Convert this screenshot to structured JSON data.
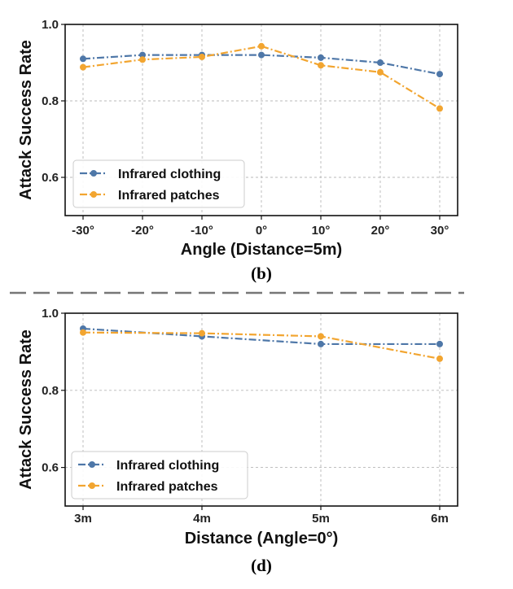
{
  "chart_data": [
    {
      "type": "line",
      "caption": "(b)",
      "xlabel": "Angle (Distance=5m)",
      "ylabel": "Attack Success Rate",
      "categories": [
        "-30°",
        "-20°",
        "-10°",
        "0°",
        "10°",
        "20°",
        "30°"
      ],
      "ylim": [
        0.5,
        1.0
      ],
      "yticks": [
        "0.6",
        "0.8",
        "1.0"
      ],
      "grid": true,
      "legend_position": "lower-left",
      "series": [
        {
          "name": "Infrared clothing",
          "color": "#4e77a8",
          "values": [
            0.91,
            0.92,
            0.92,
            0.92,
            0.913,
            0.9,
            0.87
          ]
        },
        {
          "name": "Infrared patches",
          "color": "#f2a530",
          "values": [
            0.888,
            0.908,
            0.915,
            0.943,
            0.893,
            0.875,
            0.78
          ]
        }
      ]
    },
    {
      "type": "line",
      "caption": "(d)",
      "xlabel": "Distance (Angle=0°)",
      "ylabel": "Attack Success Rate",
      "categories": [
        "3m",
        "4m",
        "5m",
        "6m"
      ],
      "ylim": [
        0.5,
        1.0
      ],
      "yticks": [
        "0.6",
        "0.8",
        "1.0"
      ],
      "grid": true,
      "legend_position": "lower-left",
      "series": [
        {
          "name": "Infrared clothing",
          "color": "#4e77a8",
          "values": [
            0.96,
            0.94,
            0.92,
            0.92
          ]
        },
        {
          "name": "Infrared patches",
          "color": "#f2a530",
          "values": [
            0.95,
            0.948,
            0.94,
            0.882
          ]
        }
      ]
    }
  ],
  "separator_color": "#777777"
}
